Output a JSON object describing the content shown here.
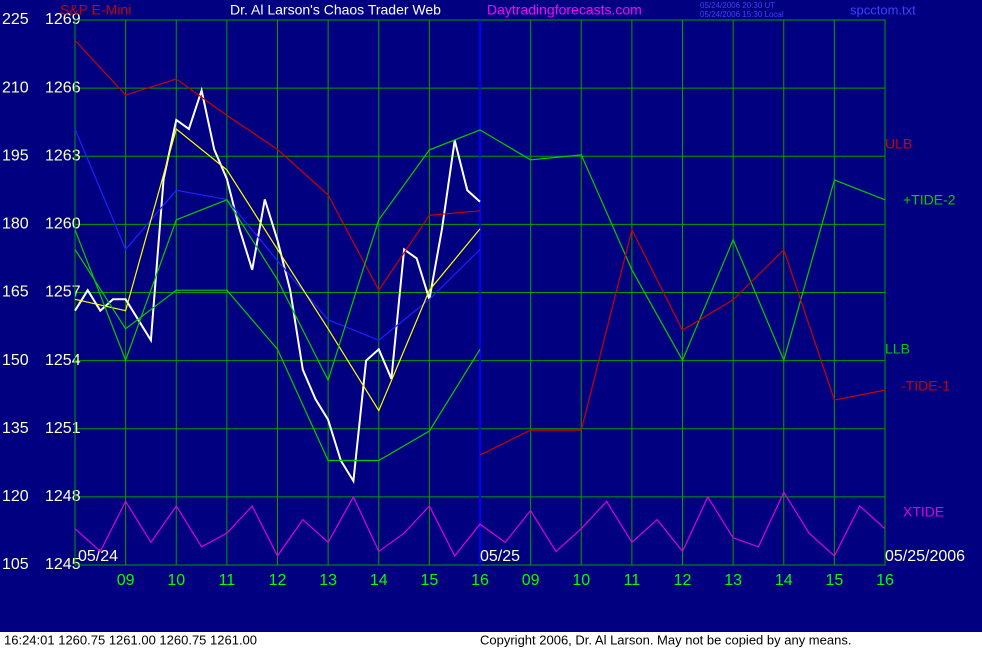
{
  "chart_data": {
    "type": "line",
    "instrument": "S&P E-Mini",
    "title": "Dr. Al Larson's Chaos Trader Web",
    "site": "Daytradingforecasts.com",
    "timestamps": [
      "05/24/2006 20:30 UT",
      "05/24/2006 15:30 Local"
    ],
    "file": "spcctom.txt",
    "ylim": [
      1245,
      1269
    ],
    "yticks": [
      1269,
      1266,
      1263,
      1260,
      1257,
      1254,
      1251,
      1248,
      1245
    ],
    "y2lim": [
      105,
      225
    ],
    "y2ticks": [
      225,
      210,
      195,
      180,
      165,
      150,
      135,
      120,
      105
    ],
    "xlim": [
      0,
      16
    ],
    "xticks": [
      {
        "value": 1,
        "label": "09"
      },
      {
        "value": 2,
        "label": "10"
      },
      {
        "value": 3,
        "label": "11"
      },
      {
        "value": 4,
        "label": "12"
      },
      {
        "value": 5,
        "label": "13"
      },
      {
        "value": 6,
        "label": "14"
      },
      {
        "value": 7,
        "label": "15"
      },
      {
        "value": 8,
        "label": "16"
      },
      {
        "value": 9,
        "label": "09"
      },
      {
        "value": 10,
        "label": "10"
      },
      {
        "value": 11,
        "label": "11"
      },
      {
        "value": 12,
        "label": "12"
      },
      {
        "value": 13,
        "label": "13"
      },
      {
        "value": 14,
        "label": "14"
      },
      {
        "value": 15,
        "label": "15"
      },
      {
        "value": 16,
        "label": "16"
      }
    ],
    "date_ticks": [
      {
        "value": 0,
        "label": "05/24"
      },
      {
        "value": 8,
        "label": "05/25"
      },
      {
        "value": 16,
        "label": "05/25/2006"
      }
    ],
    "grid": true,
    "series": [
      {
        "color": "#ffffff",
        "x": [
          0,
          0.25,
          0.5,
          0.75,
          1,
          1.25,
          1.5,
          1.75,
          2,
          2.25,
          2.5,
          2.75,
          3,
          3.25,
          3.5,
          3.75,
          4,
          4.25,
          4.5,
          4.75,
          5,
          5.25,
          5.5,
          5.75,
          6,
          6.25,
          6.5,
          6.75,
          7,
          7.25,
          7.5,
          7.75,
          8
        ],
        "values": [
          1256.2,
          1257.1,
          1256.2,
          1256.7,
          1256.7,
          1255.8,
          1254.9,
          1262.0,
          1264.6,
          1264.2,
          1265.9,
          1263.3,
          1262.0,
          1259.8,
          1258.0,
          1261.1,
          1259.3,
          1257.1,
          1253.6,
          1252.3,
          1251.4,
          1249.6,
          1248.7,
          1254.0,
          1254.5,
          1253.2,
          1258.9,
          1258.5,
          1256.7,
          1259.8,
          1263.7,
          1261.5,
          1261.0
        ]
      },
      {
        "color": "#2020ff",
        "x": [
          0,
          1,
          2,
          3,
          4,
          5,
          6,
          7,
          8
        ],
        "values": [
          1264.2,
          1258.9,
          1261.5,
          1261.1,
          1258.4,
          1255.8,
          1254.9,
          1256.7,
          1258.9
        ]
      },
      {
        "color": "#ffff00",
        "x": [
          0,
          1,
          2,
          3,
          4,
          5,
          6,
          7,
          8
        ],
        "values": [
          1256.7,
          1256.2,
          1264.2,
          1262.4,
          1258.9,
          1255.4,
          1251.8,
          1257.1,
          1259.8
        ]
      },
      {
        "name": "ULB",
        "color": "#cc0000",
        "x": [
          0,
          1,
          2,
          3,
          4,
          5,
          6,
          7,
          8
        ],
        "values": [
          1268.1,
          1265.7,
          1266.4,
          1264.8,
          1263.3,
          1261.3,
          1257.1,
          1260.4,
          1260.6
        ]
      },
      {
        "name": "+TIDE-2",
        "color": "#00cc00",
        "axis": "y2",
        "x": [
          0,
          1,
          2,
          3,
          4,
          5,
          6,
          7,
          8,
          9,
          10,
          11,
          12,
          13,
          14,
          15,
          16
        ],
        "values": [
          178.8,
          150.1,
          181.0,
          185.4,
          167.8,
          145.7,
          181.0,
          196.4,
          200.8,
          194.2,
          195.3,
          170.0,
          150.1,
          176.6,
          150.1,
          189.8,
          185.4
        ]
      },
      {
        "name": "LLB",
        "color": "#00cc00",
        "x": [
          0,
          1,
          2,
          3,
          4,
          5,
          6,
          7,
          8
        ],
        "values": [
          1258.9,
          1255.4,
          1257.1,
          1257.1,
          1254.5,
          1249.6,
          1249.6,
          1250.9,
          1254.5
        ]
      },
      {
        "name": "-TIDE-1",
        "color": "#cc0000",
        "axis": "y2",
        "x": [
          8,
          9,
          10,
          11,
          12,
          13,
          14,
          15,
          16
        ],
        "values": [
          129.2,
          134.7,
          134.7,
          178.8,
          156.7,
          163.4,
          174.4,
          141.3,
          143.5
        ]
      },
      {
        "name": "XTIDE",
        "color": "#dd00dd",
        "axis": "y2",
        "x": [
          0,
          0.5,
          1,
          1.5,
          2,
          2.5,
          3,
          3.5,
          4,
          4.5,
          5,
          5.5,
          6,
          6.5,
          7,
          7.5,
          8,
          8.5,
          9,
          9.5,
          10,
          10.5,
          11,
          11.5,
          12,
          12.5,
          13,
          13.5,
          14,
          14.5,
          15,
          15.5,
          16
        ],
        "values": [
          113,
          108,
          119,
          110,
          118,
          109,
          112,
          118,
          107,
          115,
          110,
          120,
          108,
          112,
          118,
          107,
          114,
          110,
          117,
          108,
          113,
          119,
          110,
          115,
          108,
          120,
          111,
          109,
          121,
          112,
          107,
          118,
          113
        ]
      }
    ],
    "status": "16:24:01  1260.75 1261.00 1260.75 1261.00",
    "copyright": "Copyright 2006, Dr. Al Larson. May not be copied by any means."
  }
}
